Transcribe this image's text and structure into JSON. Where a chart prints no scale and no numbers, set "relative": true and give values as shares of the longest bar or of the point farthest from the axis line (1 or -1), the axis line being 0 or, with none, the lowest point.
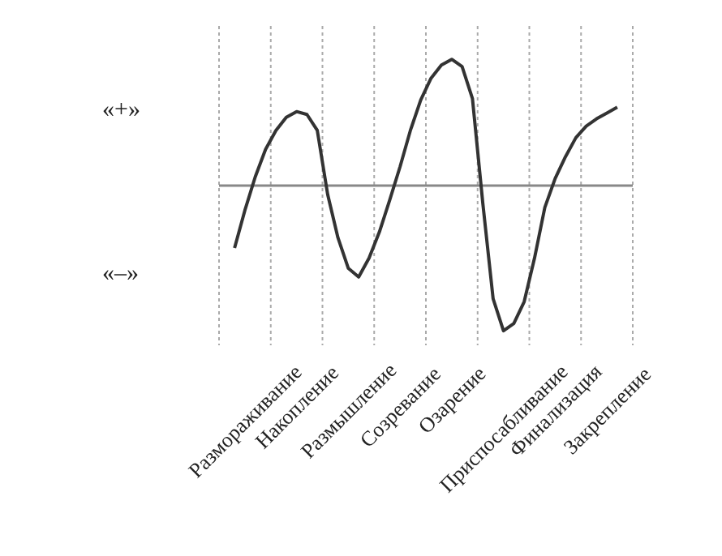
{
  "chart_data": {
    "type": "line",
    "relative": true,
    "grid": "x",
    "line_style": "solid",
    "marker": "none",
    "categories": [
      null,
      "Размораживание",
      null,
      null,
      null,
      null,
      "Накопление",
      null,
      null,
      null,
      null,
      "Размышление",
      null,
      null,
      null,
      null,
      "Созревание",
      null,
      null,
      null,
      null,
      "Озарение",
      null,
      null,
      null,
      null,
      "Приспосабливание",
      null,
      null,
      null,
      null,
      "Финализация",
      null,
      null,
      null,
      null,
      "Закрепление",
      null
    ],
    "annotations": [
      "«+»",
      "«–»"
    ],
    "series": [
      {
        "color": "#333333",
        "values": [
          -0.43,
          -0.17,
          0.06,
          0.25,
          0.38,
          0.47,
          0.51,
          0.49,
          0.38,
          -0.06,
          -0.36,
          -0.57,
          -0.63,
          -0.5,
          -0.32,
          -0.1,
          0.13,
          0.38,
          0.59,
          0.74,
          0.83,
          0.87,
          0.82,
          0.6,
          -0.12,
          -0.78,
          -1,
          -0.95,
          -0.8,
          -0.5,
          -0.15,
          0.05,
          0.2,
          0.33,
          0.41,
          0.46,
          0.5,
          0.54
        ]
      }
    ]
  }
}
